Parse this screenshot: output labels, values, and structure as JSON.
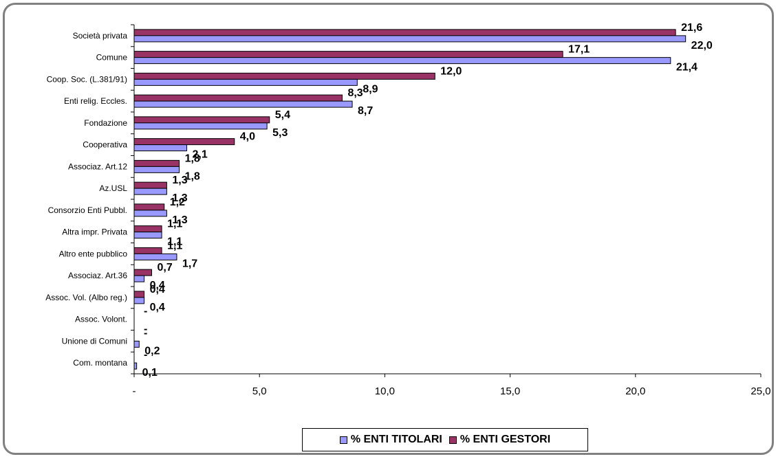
{
  "chart_data": {
    "type": "bar",
    "orientation": "horizontal",
    "title": "",
    "xlabel": "",
    "ylabel": "",
    "categories": [
      "Società privata",
      "Comune",
      "Coop. Soc. (L.381/91)",
      "Enti relig. Eccles.",
      "Fondazione",
      "Cooperativa",
      "Associaz. Art.12",
      "Az.USL",
      "Consorzio Enti Pubbl.",
      "Altra impr. Privata",
      "Altro ente pubblico",
      "Associaz. Art.36",
      "Assoc. Vol. (Albo reg.)",
      "Assoc. Volont.",
      "Unione di Comuni",
      "Com. montana"
    ],
    "series": [
      {
        "name": "% ENTI GESTORI",
        "color": "#993366",
        "values": [
          21.6,
          17.1,
          12.0,
          8.3,
          5.4,
          4.0,
          1.8,
          1.3,
          1.2,
          1.1,
          1.1,
          0.7,
          0.4,
          0,
          0,
          0
        ],
        "labels": [
          "21,6",
          "17,1",
          "12,0",
          "8,3",
          "5,4",
          "4,0",
          "1,8",
          "1,3",
          "1,2",
          "1,1",
          "1,1",
          "0,7",
          "0,4",
          "-",
          "-",
          "-"
        ]
      },
      {
        "name": "% ENTI TITOLARI",
        "color": "#9999FF",
        "values": [
          22.0,
          21.4,
          8.9,
          8.7,
          5.3,
          2.1,
          1.8,
          1.3,
          1.3,
          1.1,
          1.7,
          0.4,
          0.4,
          0,
          0.2,
          0.1
        ],
        "labels": [
          "22,0",
          "21,4",
          "8,9",
          "8,7",
          "5,3",
          "2,1",
          "1,8",
          "1,3",
          "1,3",
          "1,1",
          "1,7",
          "0,4",
          "0,4",
          "-",
          "0,2",
          "0,1"
        ]
      }
    ],
    "xlim": [
      0,
      25
    ],
    "x_ticks": [
      0,
      5,
      10,
      15,
      20,
      25
    ],
    "x_tick_labels": [
      "-",
      "5,0",
      "10,0",
      "15,0",
      "20,0",
      "25,0"
    ],
    "grid": false,
    "legend": {
      "position": "bottom",
      "entries": [
        {
          "label": "% ENTI TITOLARI",
          "color": "#9999FF"
        },
        {
          "label": "% ENTI GESTORI",
          "color": "#993366"
        }
      ]
    }
  }
}
